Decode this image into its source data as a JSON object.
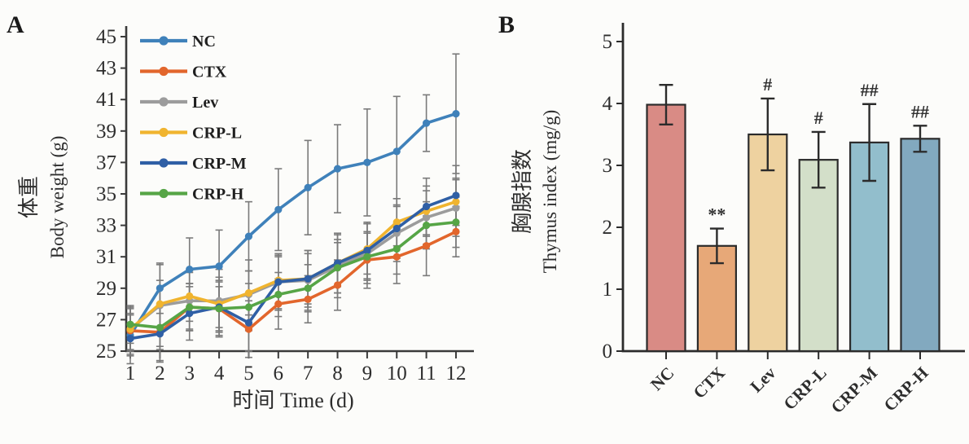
{
  "background": "#fcfcfa",
  "panels": [
    {
      "label": "A"
    },
    {
      "label": "B"
    }
  ],
  "chart_data": [
    {
      "type": "line",
      "panel": "A",
      "title": "",
      "xlabel": "时间 Time (d)",
      "ylabel_cn": "体重",
      "ylabel_en": "Body weight (g)",
      "x": [
        1,
        2,
        3,
        4,
        5,
        6,
        7,
        8,
        9,
        10,
        11,
        12
      ],
      "xlim": [
        0.5,
        12.5
      ],
      "ylim": [
        25,
        45
      ],
      "yticks": [
        25,
        27,
        29,
        31,
        33,
        35,
        37,
        39,
        41,
        43,
        45
      ],
      "grid": false,
      "legend_position": "upper-left-inside",
      "axis_color": "#3a3a3a",
      "error_bar_color": "#7a7a7a",
      "series": [
        {
          "name": "NC",
          "color": "#3f81ba",
          "values": [
            26.0,
            29.0,
            30.2,
            30.4,
            32.3,
            34.0,
            35.4,
            36.6,
            37.0,
            37.7,
            39.5,
            40.1
          ],
          "errors": [
            1.3,
            1.6,
            2.0,
            2.3,
            2.2,
            2.6,
            3.0,
            2.8,
            3.4,
            3.5,
            1.8,
            3.8
          ]
        },
        {
          "name": "CTX",
          "color": "#e2662c",
          "values": [
            26.3,
            26.2,
            27.8,
            27.7,
            26.4,
            28.0,
            28.3,
            29.2,
            30.8,
            31.0,
            31.7,
            32.6
          ],
          "errors": [
            1.5,
            1.8,
            1.5,
            1.7,
            1.8,
            1.6,
            1.5,
            1.6,
            1.8,
            1.7,
            1.9,
            1.6
          ]
        },
        {
          "name": "Lev",
          "color": "#9c9c9c",
          "values": [
            26.4,
            27.9,
            28.2,
            28.2,
            28.6,
            29.4,
            29.5,
            30.4,
            31.2,
            32.5,
            33.5,
            34.1
          ],
          "errors": [
            1.4,
            2.6,
            1.8,
            2.0,
            2.2,
            1.8,
            1.9,
            2.0,
            1.9,
            1.8,
            1.7,
            1.8
          ]
        },
        {
          "name": "CRP-L",
          "color": "#f0b42f",
          "values": [
            26.4,
            28.0,
            28.5,
            28.0,
            28.7,
            29.5,
            29.6,
            30.6,
            31.5,
            33.2,
            33.9,
            34.5
          ],
          "errors": [
            1.3,
            1.5,
            1.6,
            1.5,
            1.4,
            1.5,
            1.6,
            1.5,
            1.6,
            1.5,
            1.6,
            1.5
          ]
        },
        {
          "name": "CRP-M",
          "color": "#2f5fa5",
          "values": [
            25.8,
            26.1,
            27.4,
            27.8,
            26.8,
            29.4,
            29.6,
            30.6,
            31.4,
            32.8,
            34.2,
            34.9
          ],
          "errors": [
            1.6,
            1.8,
            1.7,
            1.9,
            1.8,
            1.7,
            1.8,
            1.9,
            1.8,
            1.9,
            1.8,
            1.9
          ]
        },
        {
          "name": "CRP-H",
          "color": "#56a546",
          "values": [
            26.7,
            26.5,
            27.8,
            27.7,
            27.8,
            28.6,
            29.0,
            30.3,
            31.0,
            31.5,
            33.0,
            33.2
          ],
          "errors": [
            1.2,
            1.4,
            1.5,
            1.4,
            1.5,
            1.4,
            1.5,
            1.6,
            1.5,
            1.6,
            1.5,
            1.6
          ]
        }
      ]
    },
    {
      "type": "bar",
      "panel": "B",
      "title": "",
      "xlabel": "",
      "ylabel_cn": "胸腺指数",
      "ylabel_en": "Thymus index (mg/g)",
      "categories": [
        "NC",
        "CTX",
        "Lev",
        "CRP-L",
        "CRP-M",
        "CRP-H"
      ],
      "values": [
        3.98,
        1.7,
        3.5,
        3.09,
        3.37,
        3.43
      ],
      "errors": [
        0.32,
        0.28,
        0.58,
        0.45,
        0.62,
        0.21
      ],
      "annotations": [
        "",
        "**",
        "#",
        "#",
        "##",
        "##"
      ],
      "bar_colors": [
        "#d98b85",
        "#e7a878",
        "#eed2a0",
        "#d3dfc9",
        "#92becc",
        "#82a9bf"
      ],
      "bar_outline": "#2b2b2b",
      "ylim": [
        0,
        5
      ],
      "yticks": [
        0,
        1,
        2,
        3,
        4,
        5
      ],
      "grid": false,
      "axis_color": "#2b2b2b",
      "error_bar_color": "#2b2b2b"
    }
  ]
}
